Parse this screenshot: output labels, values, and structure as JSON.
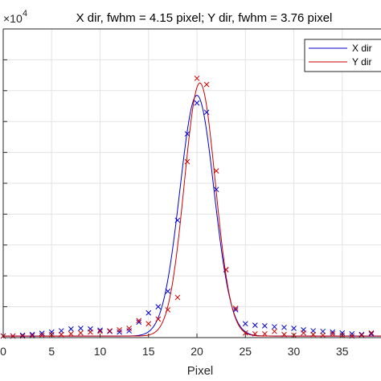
{
  "chart_data": {
    "type": "line",
    "title": "X dir, fwhm = 4.15 pixel; Y dir, fwhm = 3.76 pixel",
    "xlabel": "Pixel",
    "ylabel": "",
    "y_exponent_label": "×10",
    "y_exponent_power": "4",
    "xlim": [
      0,
      39
    ],
    "ylim": [
      0,
      10
    ],
    "x_ticks": [
      0,
      5,
      10,
      15,
      20,
      25,
      30,
      35
    ],
    "x_tick_labels": [
      "0",
      "5",
      "10",
      "15",
      "20",
      "25",
      "30",
      "35"
    ],
    "y_ticks": [
      0,
      1,
      2,
      3,
      4,
      5,
      6,
      7,
      8,
      9
    ],
    "grid": true,
    "legend_position": "top-right",
    "series": [
      {
        "name": "X dir",
        "color": "#0000cc",
        "fit": {
          "amplitude": 7.8,
          "center": 20.0,
          "fwhm": 4.15,
          "baseline": 0.05
        },
        "points": [
          {
            "x": 0,
            "y": 0.05
          },
          {
            "x": 1,
            "y": 0.05
          },
          {
            "x": 2,
            "y": 0.08
          },
          {
            "x": 3,
            "y": 0.1
          },
          {
            "x": 4,
            "y": 0.14
          },
          {
            "x": 5,
            "y": 0.18
          },
          {
            "x": 6,
            "y": 0.22
          },
          {
            "x": 7,
            "y": 0.28
          },
          {
            "x": 8,
            "y": 0.3
          },
          {
            "x": 9,
            "y": 0.28
          },
          {
            "x": 10,
            "y": 0.24
          },
          {
            "x": 11,
            "y": 0.2
          },
          {
            "x": 12,
            "y": 0.18
          },
          {
            "x": 13,
            "y": 0.22
          },
          {
            "x": 14,
            "y": 0.5
          },
          {
            "x": 15,
            "y": 0.8
          },
          {
            "x": 16,
            "y": 1.0
          },
          {
            "x": 17,
            "y": 1.5
          },
          {
            "x": 18,
            "y": 3.8
          },
          {
            "x": 19,
            "y": 6.6
          },
          {
            "x": 20,
            "y": 7.6
          },
          {
            "x": 21,
            "y": 7.3
          },
          {
            "x": 22,
            "y": 4.8
          },
          {
            "x": 23,
            "y": 2.2
          },
          {
            "x": 24,
            "y": 0.9
          },
          {
            "x": 25,
            "y": 0.45
          },
          {
            "x": 26,
            "y": 0.4
          },
          {
            "x": 27,
            "y": 0.38
          },
          {
            "x": 28,
            "y": 0.35
          },
          {
            "x": 29,
            "y": 0.33
          },
          {
            "x": 30,
            "y": 0.3
          },
          {
            "x": 31,
            "y": 0.25
          },
          {
            "x": 32,
            "y": 0.22
          },
          {
            "x": 33,
            "y": 0.2
          },
          {
            "x": 34,
            "y": 0.18
          },
          {
            "x": 35,
            "y": 0.15
          },
          {
            "x": 36,
            "y": 0.12
          },
          {
            "x": 37,
            "y": 0.1
          },
          {
            "x": 38,
            "y": 0.12
          }
        ]
      },
      {
        "name": "Y dir",
        "color": "#cc0000",
        "fit": {
          "amplitude": 8.2,
          "center": 20.3,
          "fwhm": 3.76,
          "baseline": 0.05
        },
        "points": [
          {
            "x": 0,
            "y": 0.05
          },
          {
            "x": 1,
            "y": 0.05
          },
          {
            "x": 2,
            "y": 0.05
          },
          {
            "x": 3,
            "y": 0.06
          },
          {
            "x": 4,
            "y": 0.08
          },
          {
            "x": 5,
            "y": 0.1
          },
          {
            "x": 6,
            "y": 0.1
          },
          {
            "x": 7,
            "y": 0.12
          },
          {
            "x": 8,
            "y": 0.15
          },
          {
            "x": 9,
            "y": 0.18
          },
          {
            "x": 10,
            "y": 0.2
          },
          {
            "x": 11,
            "y": 0.22
          },
          {
            "x": 12,
            "y": 0.25
          },
          {
            "x": 13,
            "y": 0.3
          },
          {
            "x": 14,
            "y": 0.55
          },
          {
            "x": 15,
            "y": 0.45
          },
          {
            "x": 16,
            "y": 0.6
          },
          {
            "x": 17,
            "y": 0.9
          },
          {
            "x": 18,
            "y": 1.3
          },
          {
            "x": 19,
            "y": 5.7
          },
          {
            "x": 20,
            "y": 8.4
          },
          {
            "x": 21,
            "y": 8.2
          },
          {
            "x": 22,
            "y": 5.4
          },
          {
            "x": 23,
            "y": 2.2
          },
          {
            "x": 24,
            "y": 0.95
          },
          {
            "x": 25,
            "y": 0.15
          },
          {
            "x": 26,
            "y": 0.12
          },
          {
            "x": 27,
            "y": 0.12
          },
          {
            "x": 28,
            "y": 0.2
          },
          {
            "x": 29,
            "y": 0.1
          },
          {
            "x": 30,
            "y": 0.08
          },
          {
            "x": 31,
            "y": 0.15
          },
          {
            "x": 32,
            "y": 0.1
          },
          {
            "x": 33,
            "y": 0.08
          },
          {
            "x": 34,
            "y": 0.12
          },
          {
            "x": 35,
            "y": 0.08
          },
          {
            "x": 36,
            "y": 0.05
          },
          {
            "x": 37,
            "y": 0.08
          },
          {
            "x": 38,
            "y": 0.15
          }
        ]
      }
    ]
  }
}
